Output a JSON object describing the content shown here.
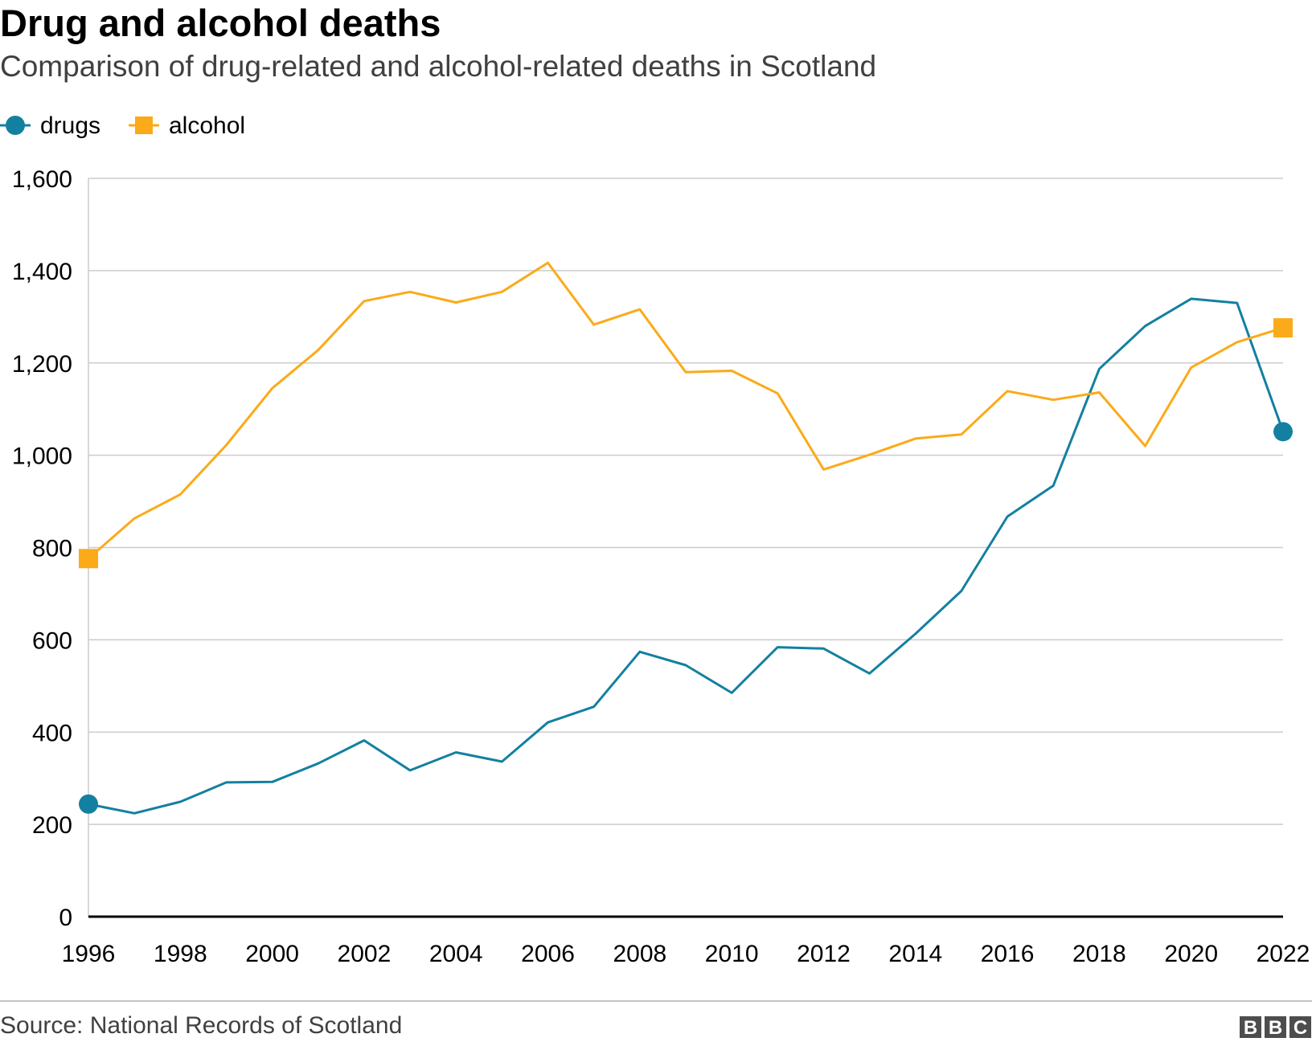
{
  "chart_data": {
    "type": "line",
    "title": "Drug and alcohol deaths",
    "subtitle": "Comparison of drug-related and alcohol-related deaths in Scotland",
    "xlabel": "",
    "ylabel": "",
    "ylim": [
      0,
      1600
    ],
    "yticks": [
      0,
      200,
      400,
      600,
      800,
      1000,
      1200,
      1400,
      1600
    ],
    "ytick_labels": [
      "0",
      "200",
      "400",
      "600",
      "800",
      "1,000",
      "1,200",
      "1,400",
      "1,600"
    ],
    "xlim": [
      1996,
      2022
    ],
    "xticks": [
      1996,
      1998,
      2000,
      2002,
      2004,
      2006,
      2008,
      2010,
      2012,
      2014,
      2016,
      2018,
      2020,
      2022
    ],
    "xtick_labels": [
      "1996",
      "1998",
      "2000",
      "2002",
      "2004",
      "2006",
      "2008",
      "2010",
      "2012",
      "2014",
      "2016",
      "2018",
      "2020",
      "2022"
    ],
    "grid": true,
    "legend_position": "top-left",
    "x": [
      1996,
      1997,
      1998,
      1999,
      2000,
      2001,
      2002,
      2003,
      2004,
      2005,
      2006,
      2007,
      2008,
      2009,
      2010,
      2011,
      2012,
      2013,
      2014,
      2015,
      2016,
      2017,
      2018,
      2019,
      2020,
      2021,
      2022
    ],
    "series": [
      {
        "name": "drugs",
        "color": "#1380a1",
        "marker": "circle",
        "values": [
          244,
          224,
          249,
          291,
          292,
          332,
          382,
          317,
          356,
          336,
          421,
          455,
          574,
          545,
          485,
          584,
          581,
          527,
          613,
          706,
          867,
          934,
          1187,
          1280,
          1339,
          1330,
          1051
        ]
      },
      {
        "name": "alcohol",
        "color": "#fbaa19",
        "marker": "square",
        "values": [
          776,
          863,
          915,
          1022,
          1145,
          1228,
          1334,
          1354,
          1331,
          1354,
          1417,
          1283,
          1316,
          1180,
          1183,
          1134,
          969,
          1001,
          1036,
          1045,
          1139,
          1120,
          1136,
          1020,
          1190,
          1245,
          1276
        ]
      }
    ]
  },
  "source": "Source: National Records of Scotland",
  "logo": "BBC"
}
